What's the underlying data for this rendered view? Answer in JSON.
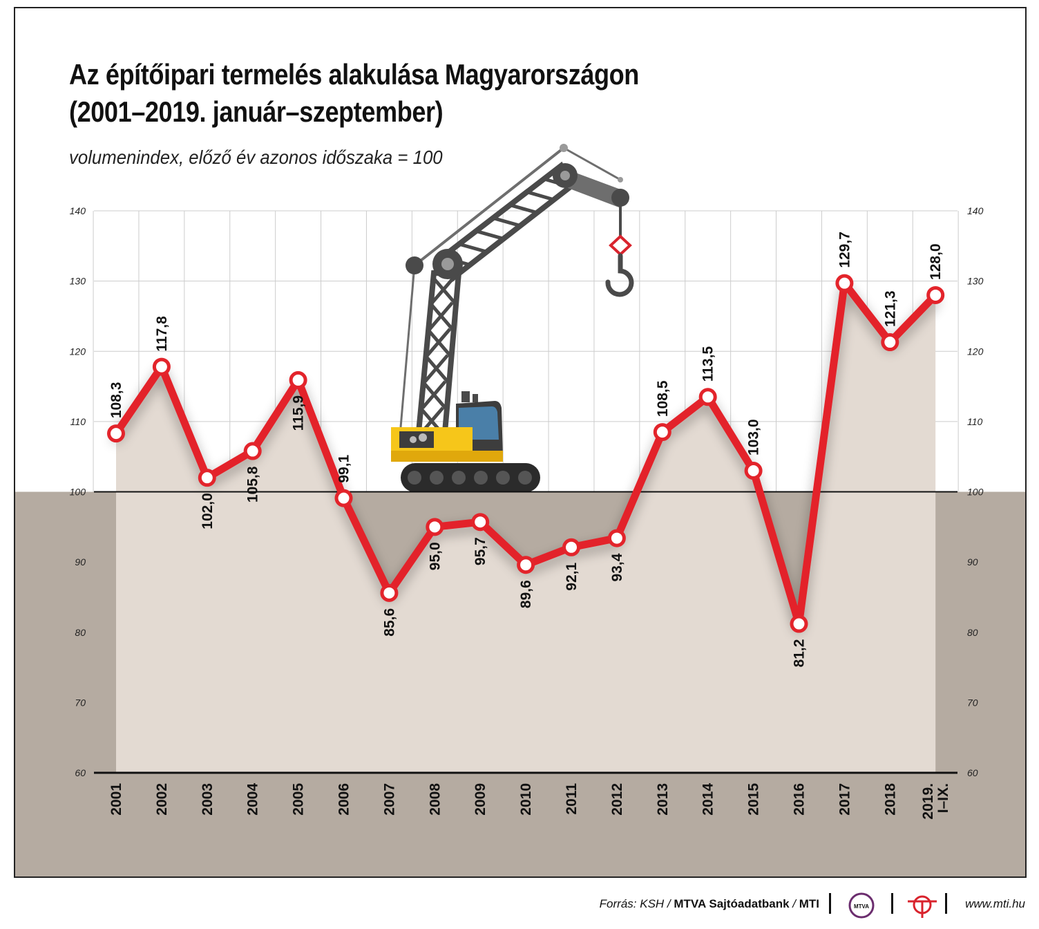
{
  "title_line1": "Az építőipari termelés alakulása Magyarországon",
  "title_line2": "(2001–2019. január–szeptember)",
  "subtitle": "volumenindex, előző év azonos időszaka = 100",
  "footer": {
    "source_prefix": "Forrás: KSH / ",
    "source_bank": "MTVA Sajtóadatbank",
    "source_sep": " / ",
    "source_mti": "MTI",
    "logo_text": "MTVA",
    "website": "www.mti.hu"
  },
  "colors": {
    "line": "#e3242b",
    "area": "#e3dad2",
    "below_band": "#b5aba1",
    "grid": "#cccccc"
  },
  "chart_data": {
    "type": "line",
    "categories": [
      "2001",
      "2002",
      "2003",
      "2004",
      "2005",
      "2006",
      "2007",
      "2008",
      "2009",
      "2010",
      "2011",
      "2012",
      "2013",
      "2014",
      "2015",
      "2016",
      "2017",
      "2018",
      "2019. I–IX."
    ],
    "values": [
      108.3,
      117.8,
      102.0,
      105.8,
      115.9,
      99.1,
      85.6,
      95.0,
      95.7,
      89.6,
      92.1,
      93.4,
      108.5,
      113.5,
      103.0,
      81.2,
      129.7,
      121.3,
      128.0
    ],
    "value_labels": [
      "108,3",
      "117,8",
      "102,0",
      "105,8",
      "115,9",
      "99,1",
      "85,6",
      "95,0",
      "95,7",
      "89,6",
      "92,1",
      "93,4",
      "108,5",
      "113,5",
      "103,0",
      "81,2",
      "129,7",
      "121,3",
      "128,0"
    ],
    "label_position": [
      "above",
      "above",
      "below",
      "below",
      "below",
      "above",
      "below",
      "below",
      "below",
      "below",
      "below",
      "below",
      "above",
      "above",
      "above",
      "below",
      "above",
      "above",
      "above"
    ],
    "ylim": [
      60,
      140
    ],
    "yticks": [
      "60",
      "70",
      "80",
      "90",
      "100",
      "110",
      "120",
      "130",
      "140"
    ],
    "baseline": 100,
    "grid": true,
    "axes": "left and right"
  }
}
